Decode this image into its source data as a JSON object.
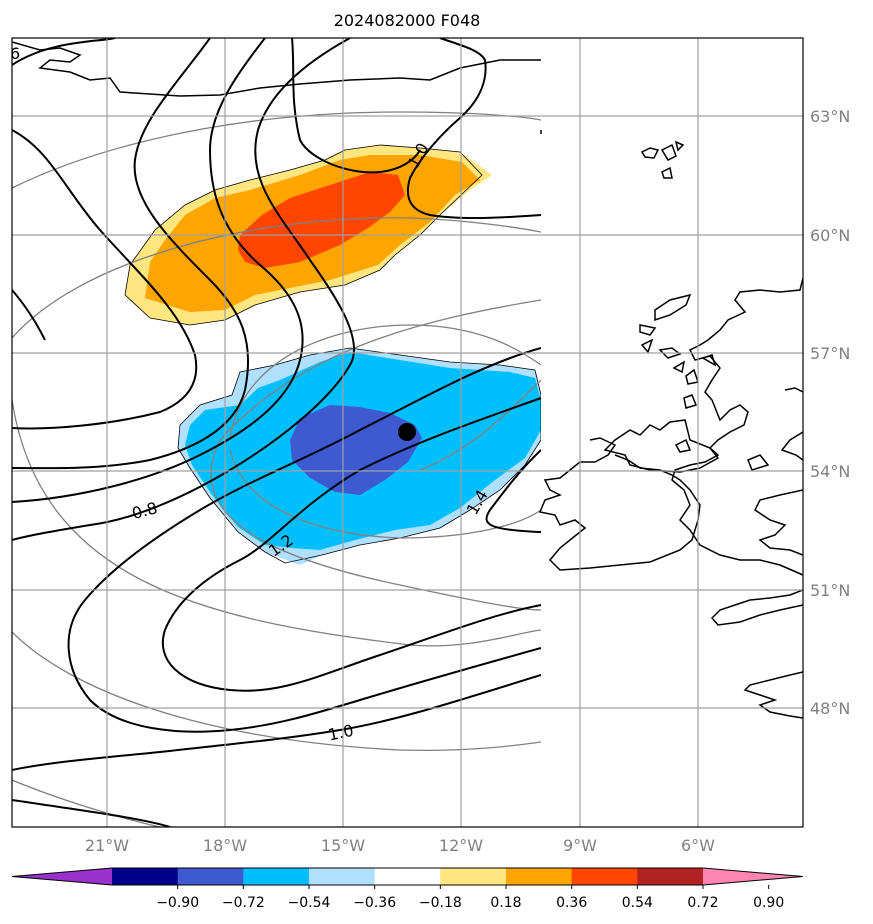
{
  "title": "2024082000 F048",
  "map": {
    "lon_ticks": [
      "21°W",
      "18°W",
      "15°W",
      "12°W",
      "9°W",
      "6°W"
    ],
    "lat_ticks": [
      "63°N",
      "60°N",
      "57°N",
      "54°N",
      "51°N",
      "48°N"
    ],
    "contour_labels": [
      "1.0",
      "0.8",
      "1.2",
      "1.4",
      "1.0",
      "6"
    ],
    "point_marker": {
      "lon": -13.4,
      "lat": 55.0
    },
    "grid": true
  },
  "colorbar": {
    "ticks": [
      "−0.90",
      "−0.72",
      "−0.54",
      "−0.36",
      "−0.18",
      "0.18",
      "0.36",
      "0.54",
      "0.72",
      "0.90"
    ],
    "colors": [
      "#9932cc",
      "#00008b",
      "#3d5ad1",
      "#00bfff",
      "#b0e0ff",
      "#ffffff",
      "#ffe680",
      "#ffa500",
      "#ff4500",
      "#b22222",
      "#ff85b3"
    ],
    "extend": "both"
  }
}
